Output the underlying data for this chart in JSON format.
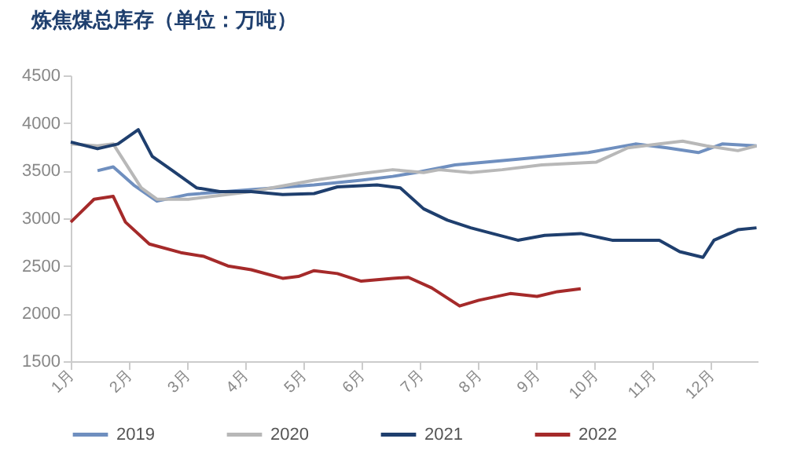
{
  "chart_data": {
    "type": "line",
    "title": "炼焦煤总库存（单位：万吨）",
    "xlim": [
      1,
      12.8
    ],
    "xticks": [
      {
        "value": 1,
        "label": "1月"
      },
      {
        "value": 2,
        "label": "2月"
      },
      {
        "value": 3,
        "label": "3月"
      },
      {
        "value": 4,
        "label": "4月"
      },
      {
        "value": 5,
        "label": "5月"
      },
      {
        "value": 6,
        "label": "6月"
      },
      {
        "value": 7,
        "label": "7月"
      },
      {
        "value": 8,
        "label": "8月"
      },
      {
        "value": 9,
        "label": "9月"
      },
      {
        "value": 10,
        "label": "10月"
      },
      {
        "value": 11,
        "label": "11月"
      },
      {
        "value": 12,
        "label": "12月"
      }
    ],
    "ylim": [
      1500,
      4500
    ],
    "yticks": [
      1500,
      2000,
      2500,
      3000,
      3500,
      4000,
      4500
    ],
    "grid": false,
    "legend": "bottom",
    "series": [
      {
        "name": "2019",
        "color": "#6f8fbf",
        "x": [
          1.46,
          1.73,
          2.08,
          2.48,
          3.02,
          4.1,
          5.18,
          5.99,
          6.53,
          6.93,
          7.6,
          8.68,
          9.89,
          10.7,
          11.24,
          11.78,
          12.19,
          12.78
        ],
        "values": [
          3500,
          3540,
          3350,
          3180,
          3250,
          3300,
          3350,
          3400,
          3440,
          3480,
          3560,
          3620,
          3690,
          3780,
          3740,
          3690,
          3780,
          3760
        ]
      },
      {
        "name": "2020",
        "color": "#b8b8b8",
        "x": [
          1,
          1.46,
          1.73,
          2.21,
          2.48,
          3.02,
          4.1,
          5.18,
          5.99,
          6.53,
          7.06,
          7.33,
          7.87,
          8.41,
          9.09,
          10.03,
          10.57,
          11.11,
          11.51,
          11.92,
          12.46,
          12.78
        ],
        "values": [
          3780,
          3760,
          3780,
          3320,
          3200,
          3200,
          3280,
          3400,
          3470,
          3510,
          3480,
          3510,
          3480,
          3510,
          3560,
          3590,
          3740,
          3780,
          3810,
          3760,
          3710,
          3760
        ]
      },
      {
        "name": "2021",
        "color": "#1f3f6e",
        "x": [
          1,
          1.46,
          1.81,
          2.16,
          2.4,
          2.75,
          3.16,
          3.56,
          4.1,
          4.64,
          5.18,
          5.58,
          6.26,
          6.66,
          7.06,
          7.47,
          7.87,
          8.68,
          9.14,
          9.76,
          10.3,
          11.11,
          11.46,
          11.86,
          12.05,
          12.46,
          12.78
        ],
        "values": [
          3800,
          3730,
          3780,
          3930,
          3650,
          3500,
          3320,
          3280,
          3280,
          3250,
          3260,
          3330,
          3350,
          3320,
          3100,
          2980,
          2900,
          2770,
          2820,
          2840,
          2770,
          2770,
          2650,
          2590,
          2770,
          2880,
          2900
        ]
      },
      {
        "name": "2022",
        "color": "#a52a2a",
        "x": [
          1,
          1.4,
          1.73,
          1.94,
          2.35,
          2.89,
          3.29,
          3.7,
          4.1,
          4.64,
          4.91,
          5.18,
          5.58,
          5.99,
          6.53,
          6.8,
          7.2,
          7.68,
          8.01,
          8.55,
          9.01,
          9.36,
          9.76
        ],
        "values": [
          2960,
          3200,
          3230,
          2960,
          2730,
          2640,
          2600,
          2500,
          2460,
          2370,
          2390,
          2450,
          2420,
          2340,
          2370,
          2380,
          2270,
          2080,
          2140,
          2210,
          2180,
          2230,
          2260
        ]
      }
    ]
  }
}
